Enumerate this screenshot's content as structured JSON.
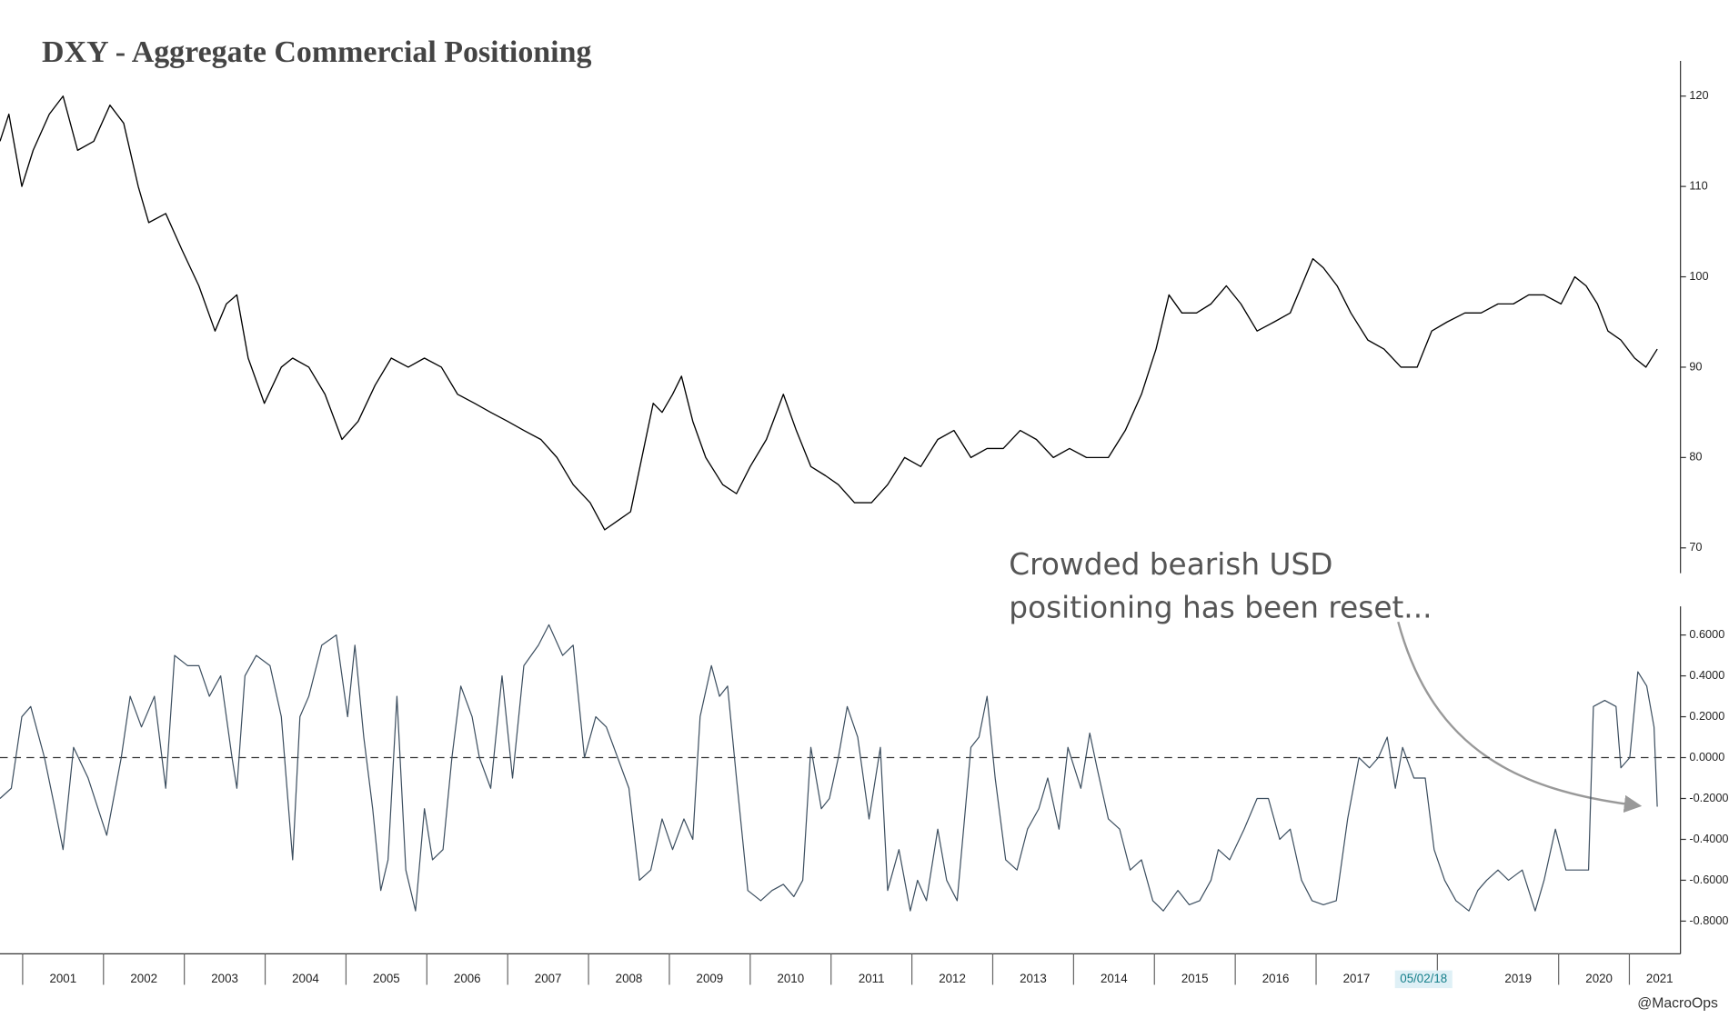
{
  "chart_data": [
    {
      "type": "line",
      "title": "DXY - Aggregate Commercial Positioning",
      "color": "#000000",
      "xlim": [
        2000.72,
        2021.48
      ],
      "ylim": [
        67.2,
        123.9
      ],
      "yticks": [
        70,
        80,
        90,
        100,
        110,
        120
      ],
      "x": [
        2000.72,
        2000.83,
        2000.99,
        2001.13,
        2001.33,
        2001.5,
        2001.68,
        2001.88,
        2002.08,
        2002.25,
        2002.43,
        2002.56,
        2002.77,
        2002.97,
        2003.18,
        2003.38,
        2003.52,
        2003.65,
        2003.79,
        2003.99,
        2004.2,
        2004.34,
        2004.54,
        2004.74,
        2004.95,
        2005.15,
        2005.36,
        2005.56,
        2005.77,
        2005.97,
        2006.18,
        2006.38,
        2006.59,
        2006.79,
        2007.0,
        2007.2,
        2007.41,
        2007.61,
        2007.81,
        2008.02,
        2008.2,
        2008.36,
        2008.52,
        2008.66,
        2008.8,
        2008.91,
        2009.04,
        2009.15,
        2009.29,
        2009.45,
        2009.66,
        2009.83,
        2010.0,
        2010.2,
        2010.41,
        2010.57,
        2010.75,
        2010.93,
        2011.09,
        2011.29,
        2011.5,
        2011.7,
        2011.91,
        2012.11,
        2012.32,
        2012.52,
        2012.73,
        2012.93,
        2013.13,
        2013.34,
        2013.54,
        2013.75,
        2013.95,
        2014.16,
        2014.43,
        2014.64,
        2014.84,
        2015.02,
        2015.18,
        2015.34,
        2015.52,
        2015.7,
        2015.89,
        2016.07,
        2016.27,
        2016.48,
        2016.68,
        2016.82,
        2016.96,
        2017.09,
        2017.26,
        2017.43,
        2017.64,
        2017.84,
        2018.05,
        2018.25,
        2018.43,
        2018.62,
        2018.84,
        2019.04,
        2019.25,
        2019.44,
        2019.63,
        2019.82,
        2020.03,
        2020.2,
        2020.34,
        2020.48,
        2020.61,
        2020.77,
        2020.94,
        2021.08,
        2021.22
      ],
      "values": [
        115,
        118,
        110,
        114,
        118,
        120,
        114,
        115,
        119,
        117,
        110,
        106,
        107,
        103,
        99,
        94,
        97,
        98,
        91,
        86,
        90,
        91,
        90,
        87,
        82,
        84,
        88,
        91,
        90,
        91,
        90,
        87,
        86,
        85,
        84,
        83,
        82,
        80,
        77,
        75,
        72,
        73,
        74,
        80,
        86,
        85,
        87,
        89,
        84,
        80,
        77,
        76,
        79,
        82,
        87,
        83,
        79,
        78,
        77,
        75,
        75,
        77,
        80,
        79,
        82,
        83,
        80,
        81,
        81,
        83,
        82,
        80,
        81,
        80,
        80,
        83,
        87,
        92,
        98,
        96,
        96,
        97,
        99,
        97,
        94,
        95,
        96,
        99,
        102,
        101,
        99,
        96,
        93,
        92,
        90,
        90,
        94,
        95,
        96,
        96,
        97,
        97,
        98,
        98,
        97,
        100,
        99,
        97,
        94,
        93,
        91,
        90,
        92
      ]
    },
    {
      "type": "line",
      "color": "#3d4f60",
      "hline": 0,
      "annotation": [
        "Crowded bearish USD",
        "positioning has been reset..."
      ],
      "source": "@MacroOps",
      "cursor_date": {
        "value": 2018.33,
        "label": "05/02/18"
      },
      "xlim": [
        2000.72,
        2021.48
      ],
      "ylim": [
        -0.96,
        0.74
      ],
      "yticks": [
        {
          "value": -0.8,
          "label": "-0.8000"
        },
        {
          "value": -0.6,
          "label": "-0.6000"
        },
        {
          "value": -0.4,
          "label": "-0.4000"
        },
        {
          "value": -0.2,
          "label": "-0.2000"
        },
        {
          "value": 0,
          "label": "0.0000"
        },
        {
          "value": 0.2,
          "label": "0.2000"
        },
        {
          "value": 0.4,
          "label": "0.4000"
        },
        {
          "value": 0.6,
          "label": "0.6000"
        }
      ],
      "xticks": [
        {
          "value": 2001.5,
          "label": "2001"
        },
        {
          "value": 2002.5,
          "label": "2002"
        },
        {
          "value": 2003.5,
          "label": "2003"
        },
        {
          "value": 2004.5,
          "label": "2004"
        },
        {
          "value": 2005.5,
          "label": "2005"
        },
        {
          "value": 2006.5,
          "label": "2006"
        },
        {
          "value": 2007.5,
          "label": "2007"
        },
        {
          "value": 2008.5,
          "label": "2008"
        },
        {
          "value": 2009.5,
          "label": "2009"
        },
        {
          "value": 2010.5,
          "label": "2010"
        },
        {
          "value": 2011.5,
          "label": "2011"
        },
        {
          "value": 2012.5,
          "label": "2012"
        },
        {
          "value": 2013.5,
          "label": "2013"
        },
        {
          "value": 2014.5,
          "label": "2014"
        },
        {
          "value": 2015.5,
          "label": "2015"
        },
        {
          "value": 2016.5,
          "label": "2016"
        },
        {
          "value": 2017.5,
          "label": "2017"
        },
        {
          "value": 2019.5,
          "label": "2019"
        },
        {
          "value": 2020.5,
          "label": "2020"
        },
        {
          "value": 2021.25,
          "label": "2021"
        }
      ],
      "x": [
        2000.72,
        2000.86,
        2000.99,
        2001.1,
        2001.27,
        2001.4,
        2001.5,
        2001.63,
        2001.81,
        2002.04,
        2002.22,
        2002.33,
        2002.47,
        2002.63,
        2002.77,
        2002.88,
        2003.04,
        2003.18,
        2003.31,
        2003.45,
        2003.59,
        2003.65,
        2003.75,
        2003.89,
        2004.06,
        2004.2,
        2004.34,
        2004.43,
        2004.54,
        2004.7,
        2004.88,
        2005.02,
        2005.11,
        2005.22,
        2005.33,
        2005.43,
        2005.52,
        2005.63,
        2005.74,
        2005.86,
        2005.97,
        2006.07,
        2006.2,
        2006.31,
        2006.42,
        2006.56,
        2006.65,
        2006.79,
        2006.93,
        2007.06,
        2007.2,
        2007.38,
        2007.51,
        2007.68,
        2007.81,
        2007.95,
        2008.09,
        2008.22,
        2008.36,
        2008.5,
        2008.63,
        2008.77,
        2008.91,
        2009.04,
        2009.18,
        2009.29,
        2009.38,
        2009.52,
        2009.62,
        2009.72,
        2009.83,
        2009.97,
        2010.13,
        2010.27,
        2010.41,
        2010.54,
        2010.65,
        2010.75,
        2010.88,
        2010.98,
        2011.09,
        2011.2,
        2011.33,
        2011.47,
        2011.61,
        2011.7,
        2011.84,
        2011.98,
        2012.07,
        2012.18,
        2012.32,
        2012.43,
        2012.56,
        2012.73,
        2012.83,
        2012.93,
        2013.03,
        2013.16,
        2013.3,
        2013.43,
        2013.57,
        2013.68,
        2013.82,
        2013.93,
        2014.09,
        2014.2,
        2014.29,
        2014.43,
        2014.57,
        2014.7,
        2014.84,
        2014.98,
        2015.11,
        2015.29,
        2015.43,
        2015.56,
        2015.7,
        2015.79,
        2015.93,
        2016.11,
        2016.27,
        2016.41,
        2016.55,
        2016.68,
        2016.82,
        2016.95,
        2017.09,
        2017.25,
        2017.39,
        2017.53,
        2017.66,
        2017.77,
        2017.88,
        2017.98,
        2018.07,
        2018.21,
        2018.35,
        2018.46,
        2018.59,
        2018.73,
        2018.89,
        2019.0,
        2019.11,
        2019.25,
        2019.38,
        2019.55,
        2019.71,
        2019.82,
        2019.96,
        2020.09,
        2020.23,
        2020.37,
        2020.43,
        2020.57,
        2020.71,
        2020.77,
        2020.88,
        2020.98,
        2021.09,
        2021.18,
        2021.22
      ],
      "values": [
        -0.2,
        -0.15,
        0.2,
        0.25,
        0.0,
        -0.25,
        -0.45,
        0.05,
        -0.1,
        -0.38,
        0.0,
        0.3,
        0.15,
        0.3,
        -0.15,
        0.5,
        0.45,
        0.45,
        0.3,
        0.4,
        0.0,
        -0.15,
        0.4,
        0.5,
        0.45,
        0.2,
        -0.5,
        0.2,
        0.3,
        0.55,
        0.6,
        0.2,
        0.55,
        0.1,
        -0.25,
        -0.65,
        -0.5,
        0.3,
        -0.55,
        -0.75,
        -0.25,
        -0.5,
        -0.45,
        0.0,
        0.35,
        0.2,
        0.0,
        -0.15,
        0.4,
        -0.1,
        0.45,
        0.55,
        0.65,
        0.5,
        0.55,
        0.0,
        0.2,
        0.15,
        0.0,
        -0.15,
        -0.6,
        -0.55,
        -0.3,
        -0.45,
        -0.3,
        -0.4,
        0.2,
        0.45,
        0.3,
        0.35,
        -0.1,
        -0.65,
        -0.7,
        -0.65,
        -0.62,
        -0.68,
        -0.6,
        0.05,
        -0.25,
        -0.2,
        0.0,
        0.25,
        0.1,
        -0.3,
        0.05,
        -0.65,
        -0.45,
        -0.75,
        -0.6,
        -0.7,
        -0.35,
        -0.6,
        -0.7,
        0.05,
        0.1,
        0.3,
        -0.1,
        -0.5,
        -0.55,
        -0.35,
        -0.25,
        -0.1,
        -0.35,
        0.05,
        -0.15,
        0.12,
        -0.05,
        -0.3,
        -0.35,
        -0.55,
        -0.5,
        -0.7,
        -0.75,
        -0.65,
        -0.72,
        -0.7,
        -0.6,
        -0.45,
        -0.5,
        -0.35,
        -0.2,
        -0.2,
        -0.4,
        -0.35,
        -0.6,
        -0.7,
        -0.72,
        -0.7,
        -0.3,
        0.0,
        -0.05,
        0.0,
        0.1,
        -0.15,
        0.05,
        -0.1,
        -0.1,
        -0.45,
        -0.6,
        -0.7,
        -0.75,
        -0.65,
        -0.6,
        -0.55,
        -0.6,
        -0.55,
        -0.75,
        -0.6,
        -0.35,
        -0.55,
        -0.55,
        -0.55,
        0.25,
        0.28,
        0.25,
        -0.05,
        0.0,
        0.42,
        0.35,
        0.15,
        -0.24
      ]
    }
  ]
}
